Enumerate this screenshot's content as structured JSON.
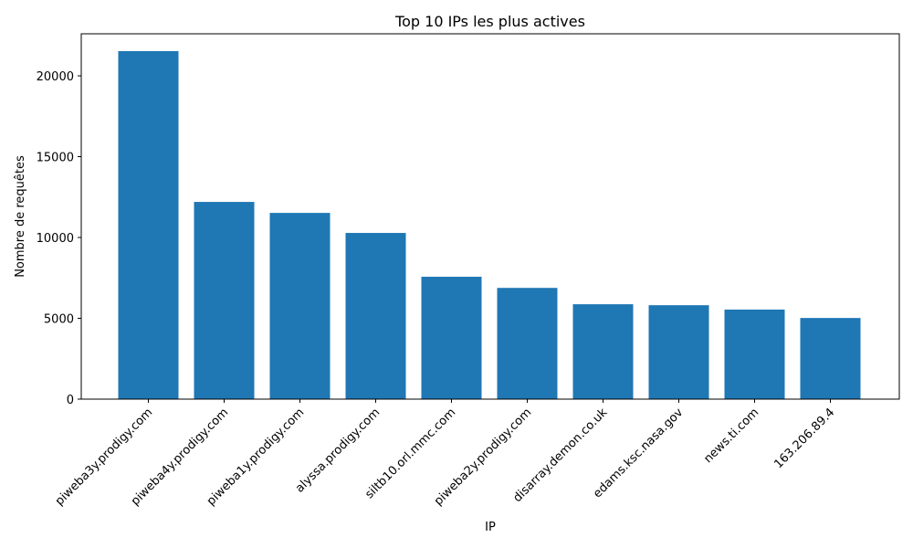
{
  "chart_data": {
    "type": "bar",
    "title": "Top 10 IPs les plus actives",
    "xlabel": "IP",
    "ylabel": "Nombre de requêtes",
    "categories": [
      "piweba3y.prodigy.com",
      "piweba4y.prodigy.com",
      "piweba1y.prodigy.com",
      "alyssa.prodigy.com",
      "siltb10.orl.mmc.com",
      "piweba2y.prodigy.com",
      "disarray.demon.co.uk",
      "edams.ksc.nasa.gov",
      "news.ti.com",
      "163.206.89.4"
    ],
    "values": [
      21530,
      12200,
      11520,
      10280,
      7570,
      6880,
      5870,
      5810,
      5540,
      5020
    ],
    "ylim": [
      0,
      22600
    ],
    "yticks": [
      0,
      5000,
      10000,
      15000,
      20000
    ],
    "bar_color": "#1f77b4",
    "grid": false,
    "legend": "none"
  }
}
